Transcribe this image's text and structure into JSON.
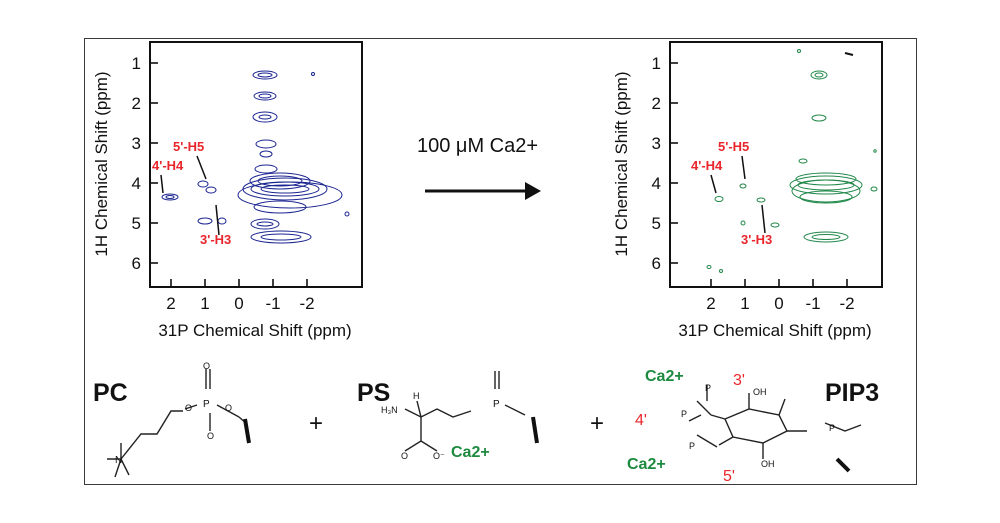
{
  "figure": {
    "left_panel": {
      "y_label": "1H Chemical Shift (ppm)",
      "x_label": "31P Chemical Shift (ppm)",
      "x_ticks": [
        "2",
        "1",
        "0",
        "-1",
        "-2"
      ],
      "y_ticks": [
        "1",
        "2",
        "3",
        "4",
        "5",
        "6"
      ],
      "contour_color": "#1b2591",
      "annotations": [
        "5'-H5",
        "4'-H4",
        "3'-H3"
      ]
    },
    "right_panel": {
      "y_label": "1H Chemical Shift (ppm)",
      "x_label": "31P Chemical Shift (ppm)",
      "x_ticks": [
        "2",
        "1",
        "0",
        "-1",
        "-2"
      ],
      "y_ticks": [
        "1",
        "2",
        "3",
        "4",
        "5",
        "6"
      ],
      "contour_color": "#22884a",
      "annotations": [
        "5'-H5",
        "4'-H4",
        "3'-H3"
      ]
    },
    "arrow_label": "100 μM Ca2+",
    "molecules": {
      "pc_label": "PC",
      "ps_label": "PS",
      "pip3_label": "PIP3",
      "plus": "+",
      "calcium": "Ca2+",
      "positions": [
        "3'",
        "4'",
        "5'"
      ],
      "accent_green": "#1e8a3f",
      "accent_red": "#e8262b"
    }
  }
}
